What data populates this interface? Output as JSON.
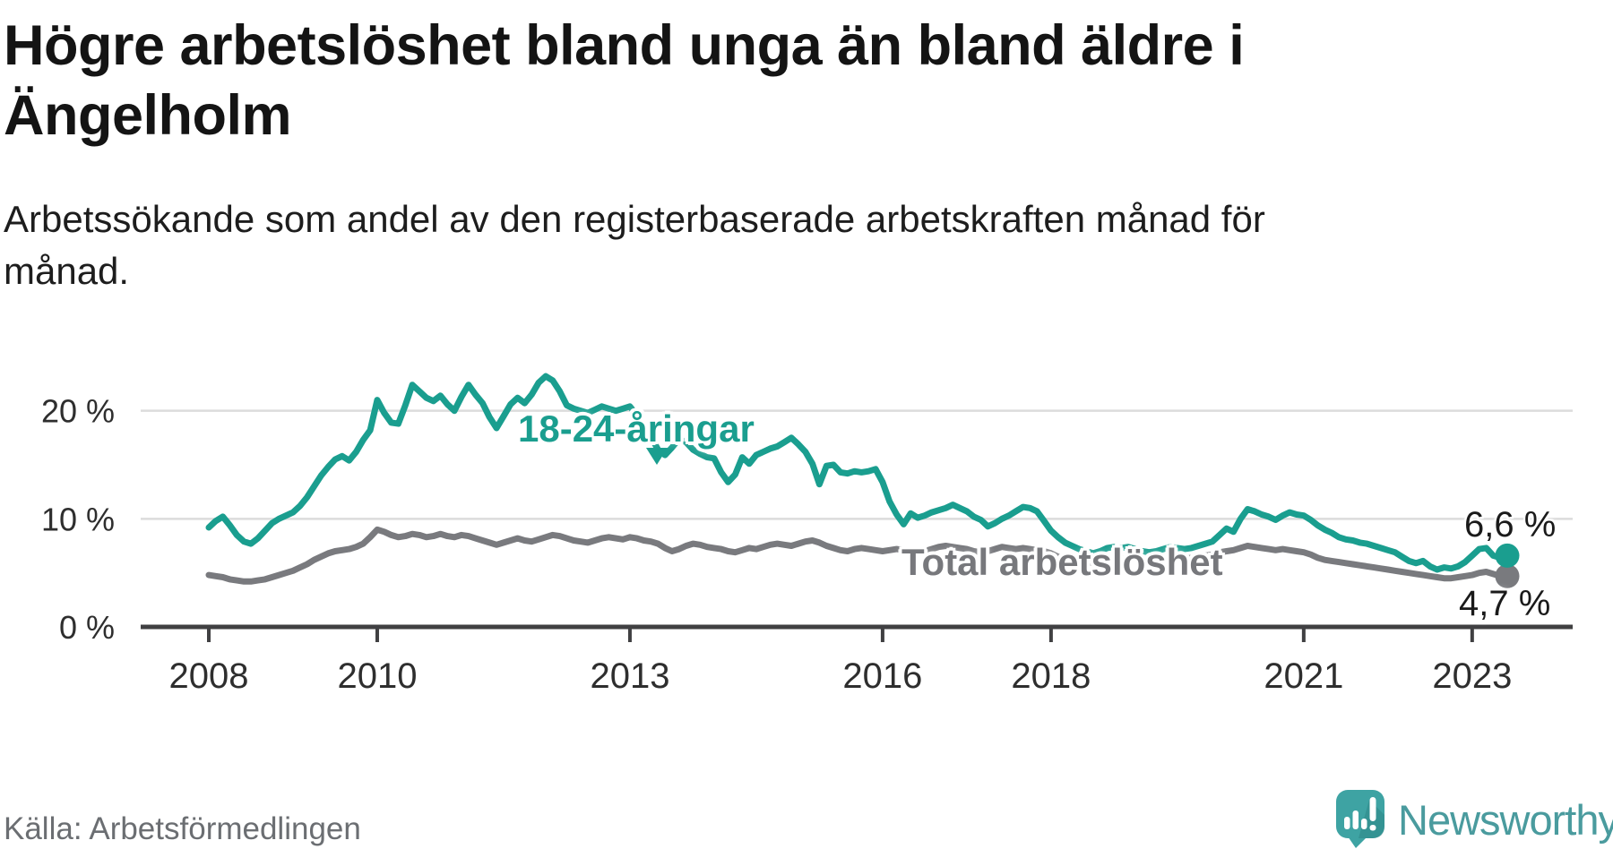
{
  "header": {
    "title_line1": "Högre arbetslöshet bland unga än bland äldre i",
    "title_line2": "Ängelholm",
    "subtitle_line1": "Arbetssökande som andel av den registerbaserade arbetskraften månad för",
    "subtitle_line2": "månad."
  },
  "footer": {
    "source": "Källa: Arbetsförmedlingen",
    "brand": "Newsworthy"
  },
  "colors": {
    "youth_line": "#1a9e8f",
    "total_line": "#797a7e",
    "axis": "#404042",
    "grid": "#dcdcdc",
    "tick_label": "#2e2e2e",
    "value_label": "#1a1a1a",
    "source_text": "#6b6e72",
    "brand_text": "#4a9b9e",
    "logo_box": "#3ea3a3"
  },
  "chart_data": {
    "type": "line",
    "unit": "%",
    "x_range": {
      "start": "2008-01",
      "end": "2023-06"
    },
    "ylim": [
      0,
      24.5
    ],
    "grid": "horizontal",
    "x_ticks": [
      {
        "year": 2008,
        "label": "2008"
      },
      {
        "year": 2010,
        "label": "2010"
      },
      {
        "year": 2013,
        "label": "2013"
      },
      {
        "year": 2016,
        "label": "2016"
      },
      {
        "year": 2018,
        "label": "2018"
      },
      {
        "year": 2021,
        "label": "2021"
      },
      {
        "year": 2023,
        "label": "2023"
      }
    ],
    "y_ticks": [
      {
        "value": 0,
        "label": "0 %"
      },
      {
        "value": 10,
        "label": "10 %"
      },
      {
        "value": 20,
        "label": "20 %"
      }
    ],
    "series": [
      {
        "name": "18-24-åringar",
        "color": "#1a9e8f",
        "end_label": "6,6 %",
        "end_value": 6.6,
        "values": [
          9.2,
          9.8,
          10.2,
          9.4,
          8.5,
          7.9,
          7.7,
          8.2,
          8.9,
          9.6,
          10.0,
          10.3,
          10.6,
          11.2,
          12.0,
          13.0,
          14.0,
          14.8,
          15.5,
          15.8,
          15.4,
          16.2,
          17.3,
          18.2,
          21.0,
          19.8,
          18.9,
          18.8,
          20.5,
          22.4,
          21.8,
          21.2,
          20.9,
          21.4,
          20.6,
          20.0,
          21.3,
          22.4,
          21.5,
          20.7,
          19.4,
          18.4,
          19.5,
          20.6,
          21.2,
          20.7,
          21.5,
          22.6,
          23.2,
          22.8,
          21.8,
          20.5,
          20.2,
          20.0,
          19.8,
          20.1,
          20.4,
          20.2,
          20.0,
          20.2,
          20.4,
          19.6,
          18.4,
          17.6,
          16.4,
          15.9,
          16.6,
          17.4,
          17.1,
          16.4,
          16.0,
          15.7,
          15.6,
          14.3,
          13.4,
          14.1,
          15.7,
          15.1,
          15.9,
          16.2,
          16.5,
          16.7,
          17.1,
          17.5,
          16.9,
          16.2,
          15.1,
          13.2,
          14.9,
          15.0,
          14.3,
          14.2,
          14.4,
          14.3,
          14.4,
          14.6,
          13.4,
          11.6,
          10.4,
          9.5,
          10.5,
          10.1,
          10.3,
          10.6,
          10.8,
          11.0,
          11.3,
          11.0,
          10.7,
          10.2,
          9.9,
          9.3,
          9.6,
          10.0,
          10.3,
          10.7,
          11.1,
          11.0,
          10.7,
          9.8,
          8.9,
          8.3,
          7.8,
          7.5,
          7.2,
          7.0,
          6.8,
          7.0,
          7.3,
          7.4,
          7.3,
          7.4,
          7.2,
          7.0,
          6.9,
          7.0,
          7.2,
          7.4,
          7.3,
          7.2,
          7.3,
          7.5,
          7.7,
          7.9,
          8.5,
          9.1,
          8.8,
          10.0,
          10.9,
          10.7,
          10.4,
          10.2,
          9.9,
          10.3,
          10.6,
          10.4,
          10.3,
          9.9,
          9.4,
          9.0,
          8.7,
          8.3,
          8.1,
          8.0,
          7.8,
          7.7,
          7.5,
          7.3,
          7.1,
          6.9,
          6.5,
          6.1,
          5.9,
          6.1,
          5.6,
          5.3,
          5.5,
          5.4,
          5.6,
          6.0,
          6.6,
          7.2,
          7.3,
          6.6,
          6.4,
          6.6
        ]
      },
      {
        "name": "Total arbetslöshet",
        "color": "#797a7e",
        "end_label": "4,7 %",
        "end_value": 4.7,
        "values": [
          4.8,
          4.7,
          4.6,
          4.4,
          4.3,
          4.2,
          4.2,
          4.3,
          4.4,
          4.6,
          4.8,
          5.0,
          5.2,
          5.5,
          5.8,
          6.2,
          6.5,
          6.8,
          7.0,
          7.1,
          7.2,
          7.4,
          7.7,
          8.3,
          9.0,
          8.8,
          8.5,
          8.3,
          8.4,
          8.6,
          8.5,
          8.3,
          8.4,
          8.6,
          8.4,
          8.3,
          8.5,
          8.4,
          8.2,
          8.0,
          7.8,
          7.6,
          7.8,
          8.0,
          8.2,
          8.0,
          7.9,
          8.1,
          8.3,
          8.5,
          8.4,
          8.2,
          8.0,
          7.9,
          7.8,
          8.0,
          8.2,
          8.3,
          8.2,
          8.1,
          8.3,
          8.2,
          8.0,
          7.9,
          7.7,
          7.3,
          7.0,
          7.2,
          7.5,
          7.7,
          7.6,
          7.4,
          7.3,
          7.2,
          7.0,
          6.9,
          7.1,
          7.3,
          7.2,
          7.4,
          7.6,
          7.7,
          7.6,
          7.5,
          7.7,
          7.9,
          8.0,
          7.8,
          7.5,
          7.3,
          7.1,
          7.0,
          7.2,
          7.3,
          7.2,
          7.1,
          7.0,
          7.1,
          7.2,
          7.1,
          7.0,
          6.9,
          7.0,
          7.2,
          7.4,
          7.5,
          7.4,
          7.3,
          7.2,
          7.0,
          6.9,
          7.0,
          7.2,
          7.4,
          7.3,
          7.2,
          7.3,
          7.2,
          7.1,
          7.0,
          6.8,
          6.5,
          6.3,
          6.2,
          6.1,
          6.0,
          5.9,
          6.0,
          6.1,
          6.2,
          6.3,
          6.4,
          6.3,
          6.2,
          6.1,
          6.2,
          6.3,
          6.5,
          6.4,
          6.3,
          6.4,
          6.5,
          6.6,
          6.7,
          6.9,
          7.0,
          7.1,
          7.3,
          7.5,
          7.4,
          7.3,
          7.2,
          7.1,
          7.2,
          7.1,
          7.0,
          6.9,
          6.7,
          6.4,
          6.2,
          6.1,
          6.0,
          5.9,
          5.8,
          5.7,
          5.6,
          5.5,
          5.4,
          5.3,
          5.2,
          5.1,
          5.0,
          4.9,
          4.8,
          4.7,
          4.6,
          4.5,
          4.5,
          4.6,
          4.7,
          4.8,
          5.0,
          5.1,
          4.9,
          4.7,
          4.7
        ]
      }
    ]
  }
}
